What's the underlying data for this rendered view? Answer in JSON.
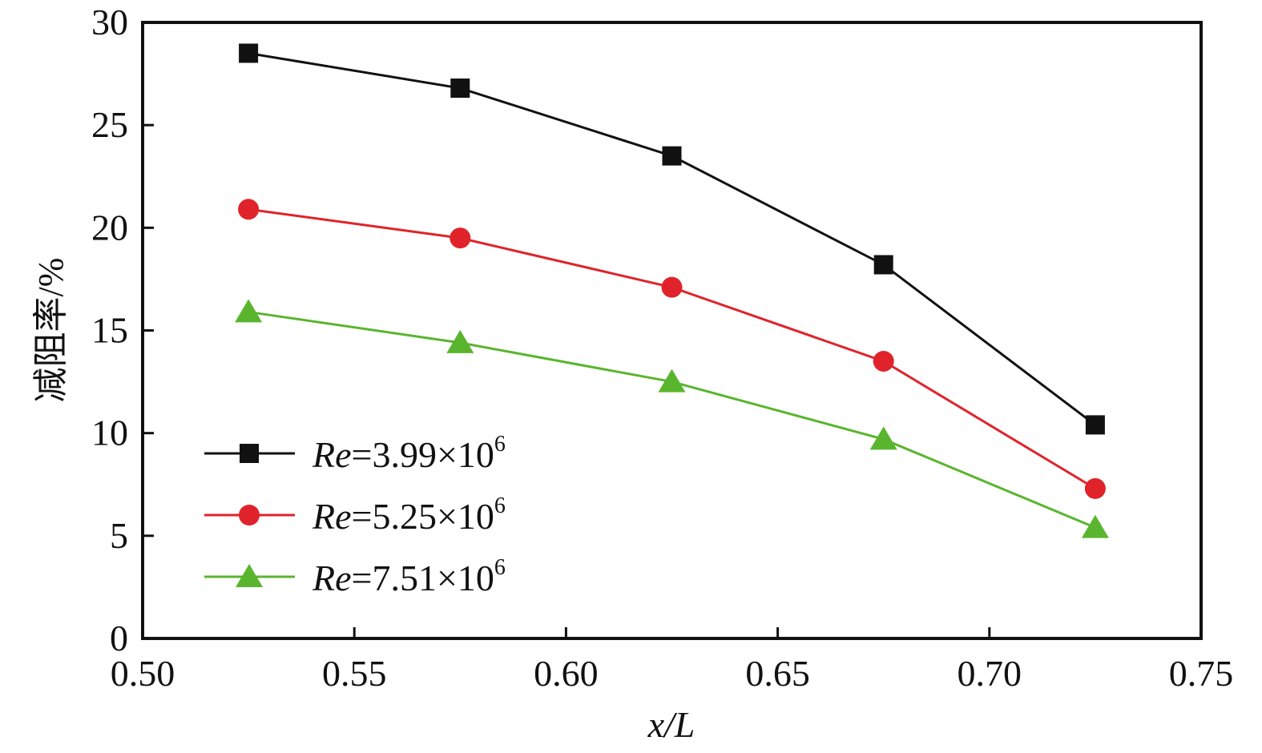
{
  "chart_data": {
    "type": "line",
    "title": "",
    "xlabel": "x/L",
    "ylabel": "减阻率/%",
    "xlim": [
      0.5,
      0.75
    ],
    "ylim": [
      0,
      30
    ],
    "xticks": [
      "0.50",
      "0.55",
      "0.60",
      "0.65",
      "0.70",
      "0.75"
    ],
    "yticks": [
      "0",
      "5",
      "10",
      "15",
      "20",
      "25",
      "30"
    ],
    "grid": false,
    "legend_position": "bottom-left",
    "x": [
      0.525,
      0.575,
      0.625,
      0.675,
      0.725
    ],
    "series": [
      {
        "name_prefix": "Re",
        "name_rest": "=3.99×10",
        "name_exp": "6",
        "color": "#111111",
        "marker": "square",
        "values": [
          28.5,
          26.8,
          23.5,
          18.2,
          10.4
        ]
      },
      {
        "name_prefix": "Re",
        "name_rest": "=5.25×10",
        "name_exp": "6",
        "color": "#e0232a",
        "marker": "circle",
        "values": [
          20.9,
          19.5,
          17.1,
          13.5,
          7.3
        ]
      },
      {
        "name_prefix": "Re",
        "name_rest": "=7.51×10",
        "name_exp": "6",
        "color": "#5ab52e",
        "marker": "triangle",
        "values": [
          15.9,
          14.4,
          12.5,
          9.7,
          5.4
        ]
      }
    ]
  }
}
